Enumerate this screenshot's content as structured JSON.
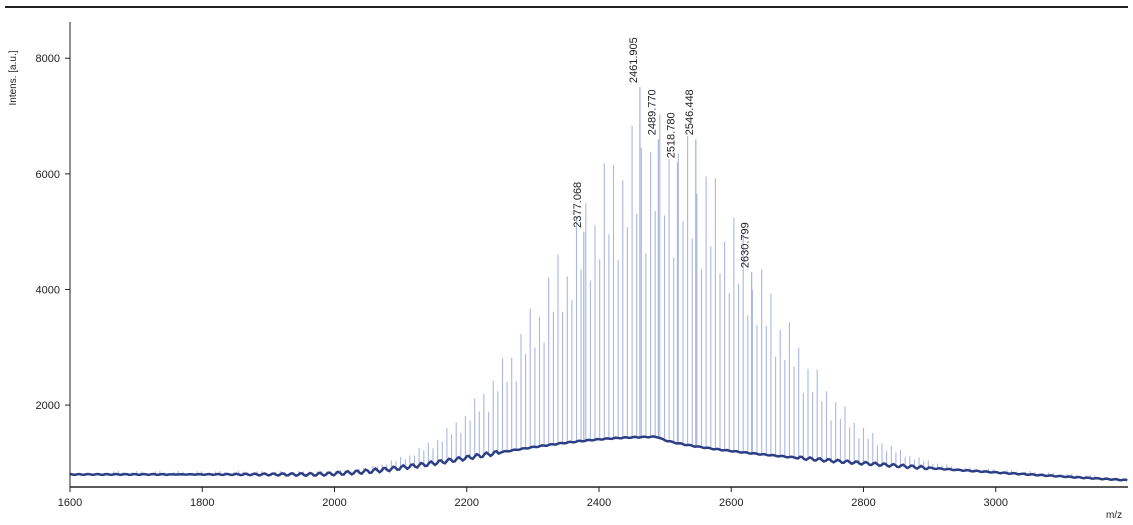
{
  "chart_data": {
    "type": "line",
    "title": "",
    "xlabel": "m/z",
    "ylabel": "Intens. [a.u.]",
    "xlim": [
      1600,
      3200
    ],
    "ylim": [
      600,
      8800
    ],
    "x_ticks": [
      1600,
      1800,
      2000,
      2200,
      2400,
      2600,
      2800,
      3000
    ],
    "y_ticks": [
      2000,
      4000,
      6000,
      8000
    ],
    "grid": false,
    "colors": {
      "spectrum": "#aab8e0",
      "baseline": "#2c3e86",
      "axis": "#222222"
    },
    "envelope": {
      "peak_spacing_mz": 14,
      "center_mz": 2490,
      "sigma_mz": 150,
      "peak_max_intensity": 5600,
      "baseline_left": 800,
      "baseline_center": 1450,
      "baseline_right": 700
    },
    "annotated_peaks": [
      {
        "mz": 2377.068,
        "intensity": 5000,
        "label": "2377.068"
      },
      {
        "mz": 2461.905,
        "intensity": 7500,
        "label": "2461.905"
      },
      {
        "mz": 2489.77,
        "intensity": 6600,
        "label": "2489.770"
      },
      {
        "mz": 2518.78,
        "intensity": 6200,
        "label": "2518.780"
      },
      {
        "mz": 2546.448,
        "intensity": 6600,
        "label": "2546.448"
      },
      {
        "mz": 2630.799,
        "intensity": 4300,
        "label": "2630.799"
      }
    ]
  }
}
